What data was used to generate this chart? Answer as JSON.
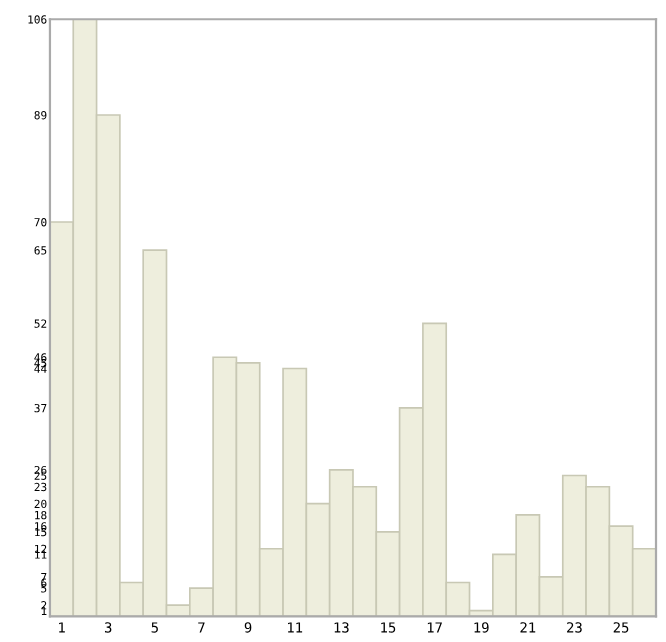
{
  "chart_data": {
    "type": "bar",
    "categories": [
      "1",
      null,
      "3",
      null,
      "5",
      null,
      "7",
      null,
      "9",
      null,
      "11",
      null,
      "13",
      null,
      "15",
      null,
      "17",
      null,
      "19",
      null,
      "21",
      null,
      "23",
      null,
      "25",
      null
    ],
    "values": [
      70,
      106,
      89,
      6,
      65,
      2,
      5,
      46,
      45,
      12,
      44,
      20,
      26,
      23,
      15,
      37,
      52,
      6,
      1,
      11,
      18,
      7,
      25,
      23,
      16,
      12
    ],
    "color": "#eeeedd",
    "ylim": [
      0,
      106
    ],
    "yticks": [
      1,
      2,
      5,
      6,
      7,
      11,
      12,
      15,
      16,
      18,
      20,
      23,
      25,
      26,
      37,
      44,
      45,
      46,
      52,
      65,
      70,
      89,
      106
    ],
    "grid": false
  }
}
